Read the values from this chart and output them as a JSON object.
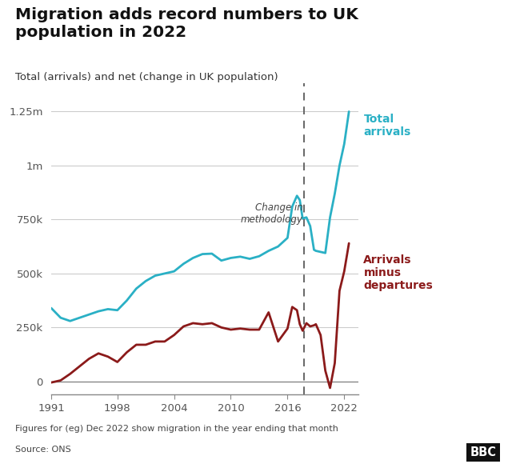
{
  "title": "Migration adds record numbers to UK\npopulation in 2022",
  "subtitle": "Total (arrivals) and net (change in UK population)",
  "footnote": "Figures for (eg) Dec 2022 show migration in the year ending that month",
  "source": "Source: ONS",
  "methodology_label": "Change in\nmethodology",
  "methodology_x": 2017.75,
  "label_total": "Total\narrivals",
  "label_net": "Arrivals\nminus\ndepartures",
  "color_total": "#2ab0c5",
  "color_net": "#8b1a1a",
  "color_dashed": "#666666",
  "ylim": [
    -60000,
    1380000
  ],
  "yticks": [
    0,
    250000,
    500000,
    750000,
    1000000,
    1250000
  ],
  "ytick_labels": [
    "0",
    "250k",
    "500k",
    "750k",
    "1m",
    "1.25m"
  ],
  "xticks": [
    1991,
    1998,
    2004,
    2010,
    2016,
    2022
  ],
  "total_arrivals_x": [
    1991,
    1992,
    1993,
    1994,
    1995,
    1996,
    1997,
    1998,
    1999,
    2000,
    2001,
    2002,
    2003,
    2004,
    2005,
    2006,
    2007,
    2008,
    2009,
    2010,
    2011,
    2012,
    2013,
    2014,
    2015,
    2016,
    2016.5,
    2017,
    2017.3,
    2017.6,
    2018,
    2018.4,
    2018.8,
    2019,
    2019.5,
    2020,
    2020.5,
    2021,
    2021.5,
    2022,
    2022.5
  ],
  "total_arrivals_y": [
    340000,
    295000,
    280000,
    295000,
    310000,
    325000,
    335000,
    330000,
    375000,
    430000,
    465000,
    490000,
    500000,
    510000,
    545000,
    572000,
    590000,
    592000,
    560000,
    572000,
    578000,
    568000,
    580000,
    605000,
    625000,
    665000,
    810000,
    860000,
    840000,
    755000,
    760000,
    720000,
    610000,
    605000,
    600000,
    595000,
    760000,
    870000,
    1000000,
    1100000,
    1250000
  ],
  "net_x": [
    1991,
    1992,
    1993,
    1994,
    1995,
    1996,
    1997,
    1998,
    1999,
    2000,
    2001,
    2002,
    2003,
    2004,
    2005,
    2006,
    2007,
    2008,
    2009,
    2010,
    2011,
    2012,
    2013,
    2014,
    2015,
    2016,
    2016.5,
    2017,
    2017.3,
    2017.6,
    2018,
    2018.4,
    2018.8,
    2019,
    2019.5,
    2020,
    2020.5,
    2021,
    2021.5,
    2022,
    2022.5
  ],
  "net_y": [
    -5000,
    5000,
    35000,
    70000,
    105000,
    130000,
    115000,
    90000,
    135000,
    170000,
    170000,
    185000,
    185000,
    215000,
    255000,
    270000,
    265000,
    270000,
    250000,
    240000,
    245000,
    240000,
    240000,
    320000,
    185000,
    245000,
    345000,
    330000,
    265000,
    235000,
    270000,
    255000,
    260000,
    265000,
    215000,
    50000,
    -30000,
    85000,
    420000,
    510000,
    640000
  ]
}
